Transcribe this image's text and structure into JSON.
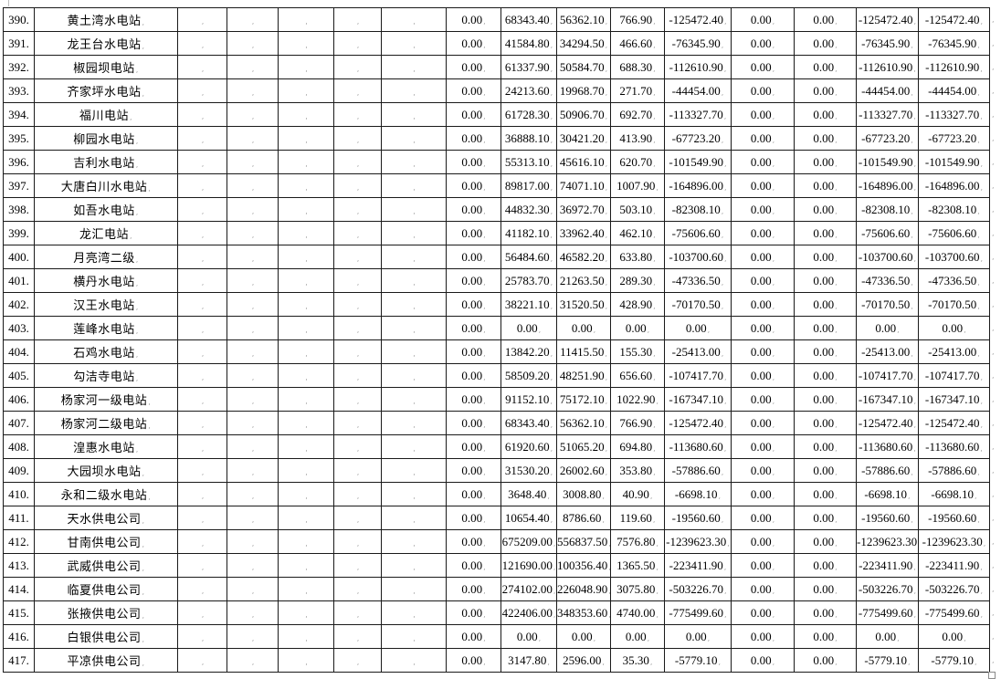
{
  "colors": {
    "grid_line": "#1a1a1a",
    "text": "#000000",
    "formatting_mark": "#a0a0a0",
    "background": "#ffffff"
  },
  "icons": {
    "cell_end_mark": ",",
    "row_end_mark": ","
  },
  "table": {
    "rows": [
      {
        "num": "390.",
        "name": "黄土湾水电站",
        "values": [
          "0.00",
          "68343.40",
          "56362.10",
          "766.90",
          "-125472.40",
          "0.00",
          "0.00",
          "-125472.40",
          "-125472.40"
        ]
      },
      {
        "num": "391.",
        "name": "龙王台水电站",
        "values": [
          "0.00",
          "41584.80",
          "34294.50",
          "466.60",
          "-76345.90",
          "0.00",
          "0.00",
          "-76345.90",
          "-76345.90"
        ]
      },
      {
        "num": "392.",
        "name": "椒园坝电站",
        "values": [
          "0.00",
          "61337.90",
          "50584.70",
          "688.30",
          "-112610.90",
          "0.00",
          "0.00",
          "-112610.90",
          "-112610.90"
        ]
      },
      {
        "num": "393.",
        "name": "齐家坪水电站",
        "values": [
          "0.00",
          "24213.60",
          "19968.70",
          "271.70",
          "-44454.00",
          "0.00",
          "0.00",
          "-44454.00",
          "-44454.00"
        ]
      },
      {
        "num": "394.",
        "name": "福川电站",
        "values": [
          "0.00",
          "61728.30",
          "50906.70",
          "692.70",
          "-113327.70",
          "0.00",
          "0.00",
          "-113327.70",
          "-113327.70"
        ]
      },
      {
        "num": "395.",
        "name": "柳园水电站",
        "values": [
          "0.00",
          "36888.10",
          "30421.20",
          "413.90",
          "-67723.20",
          "0.00",
          "0.00",
          "-67723.20",
          "-67723.20"
        ]
      },
      {
        "num": "396.",
        "name": "吉利水电站",
        "values": [
          "0.00",
          "55313.10",
          "45616.10",
          "620.70",
          "-101549.90",
          "0.00",
          "0.00",
          "-101549.90",
          "-101549.90"
        ]
      },
      {
        "num": "397.",
        "name": "大唐白川水电站",
        "values": [
          "0.00",
          "89817.00",
          "74071.10",
          "1007.90",
          "-164896.00",
          "0.00",
          "0.00",
          "-164896.00",
          "-164896.00"
        ]
      },
      {
        "num": "398.",
        "name": "如吾水电站",
        "values": [
          "0.00",
          "44832.30",
          "36972.70",
          "503.10",
          "-82308.10",
          "0.00",
          "0.00",
          "-82308.10",
          "-82308.10"
        ]
      },
      {
        "num": "399.",
        "name": "龙汇电站",
        "values": [
          "0.00",
          "41182.10",
          "33962.40",
          "462.10",
          "-75606.60",
          "0.00",
          "0.00",
          "-75606.60",
          "-75606.60"
        ]
      },
      {
        "num": "400.",
        "name": "月亮湾二级",
        "values": [
          "0.00",
          "56484.60",
          "46582.20",
          "633.80",
          "-103700.60",
          "0.00",
          "0.00",
          "-103700.60",
          "-103700.60"
        ]
      },
      {
        "num": "401.",
        "name": "横丹水电站",
        "values": [
          "0.00",
          "25783.70",
          "21263.50",
          "289.30",
          "-47336.50",
          "0.00",
          "0.00",
          "-47336.50",
          "-47336.50"
        ]
      },
      {
        "num": "402.",
        "name": "汉王水电站",
        "values": [
          "0.00",
          "38221.10",
          "31520.50",
          "428.90",
          "-70170.50",
          "0.00",
          "0.00",
          "-70170.50",
          "-70170.50"
        ]
      },
      {
        "num": "403.",
        "name": "莲峰水电站",
        "values": [
          "0.00",
          "0.00",
          "0.00",
          "0.00",
          "0.00",
          "0.00",
          "0.00",
          "0.00",
          "0.00"
        ]
      },
      {
        "num": "404.",
        "name": "石鸡水电站",
        "values": [
          "0.00",
          "13842.20",
          "11415.50",
          "155.30",
          "-25413.00",
          "0.00",
          "0.00",
          "-25413.00",
          "-25413.00"
        ]
      },
      {
        "num": "405.",
        "name": "勾洁寺电站",
        "values": [
          "0.00",
          "58509.20",
          "48251.90",
          "656.60",
          "-107417.70",
          "0.00",
          "0.00",
          "-107417.70",
          "-107417.70"
        ]
      },
      {
        "num": "406.",
        "name": "杨家河一级电站",
        "values": [
          "0.00",
          "91152.10",
          "75172.10",
          "1022.90",
          "-167347.10",
          "0.00",
          "0.00",
          "-167347.10",
          "-167347.10"
        ]
      },
      {
        "num": "407.",
        "name": "杨家河二级电站",
        "values": [
          "0.00",
          "68343.40",
          "56362.10",
          "766.90",
          "-125472.40",
          "0.00",
          "0.00",
          "-125472.40",
          "-125472.40"
        ]
      },
      {
        "num": "408.",
        "name": "湟惠水电站",
        "values": [
          "0.00",
          "61920.60",
          "51065.20",
          "694.80",
          "-113680.60",
          "0.00",
          "0.00",
          "-113680.60",
          "-113680.60"
        ]
      },
      {
        "num": "409.",
        "name": "大园坝水电站",
        "values": [
          "0.00",
          "31530.20",
          "26002.60",
          "353.80",
          "-57886.60",
          "0.00",
          "0.00",
          "-57886.60",
          "-57886.60"
        ]
      },
      {
        "num": "410.",
        "name": "永和二级水电站",
        "values": [
          "0.00",
          "3648.40",
          "3008.80",
          "40.90",
          "-6698.10",
          "0.00",
          "0.00",
          "-6698.10",
          "-6698.10"
        ]
      },
      {
        "num": "411.",
        "name": "天水供电公司",
        "values": [
          "0.00",
          "10654.40",
          "8786.60",
          "119.60",
          "-19560.60",
          "0.00",
          "0.00",
          "-19560.60",
          "-19560.60"
        ]
      },
      {
        "num": "412.",
        "name": "甘南供电公司",
        "values": [
          "0.00",
          "675209.00",
          "556837.50",
          "7576.80",
          "-1239623.30",
          "0.00",
          "0.00",
          "-1239623.30",
          "-1239623.30"
        ]
      },
      {
        "num": "413.",
        "name": "武威供电公司",
        "values": [
          "0.00",
          "121690.00",
          "100356.40",
          "1365.50",
          "-223411.90",
          "0.00",
          "0.00",
          "-223411.90",
          "-223411.90"
        ]
      },
      {
        "num": "414.",
        "name": "临夏供电公司",
        "values": [
          "0.00",
          "274102.00",
          "226048.90",
          "3075.80",
          "-503226.70",
          "0.00",
          "0.00",
          "-503226.70",
          "-503226.70"
        ]
      },
      {
        "num": "415.",
        "name": "张掖供电公司",
        "values": [
          "0.00",
          "422406.00",
          "348353.60",
          "4740.00",
          "-775499.60",
          "0.00",
          "0.00",
          "-775499.60",
          "-775499.60"
        ]
      },
      {
        "num": "416.",
        "name": "白银供电公司",
        "values": [
          "0.00",
          "0.00",
          "0.00",
          "0.00",
          "0.00",
          "0.00",
          "0.00",
          "0.00",
          "0.00"
        ]
      },
      {
        "num": "417.",
        "name": "平凉供电公司",
        "values": [
          "0.00",
          "3147.80",
          "2596.00",
          "35.30",
          "-5779.10",
          "0.00",
          "0.00",
          "-5779.10",
          "-5779.10"
        ]
      }
    ]
  }
}
